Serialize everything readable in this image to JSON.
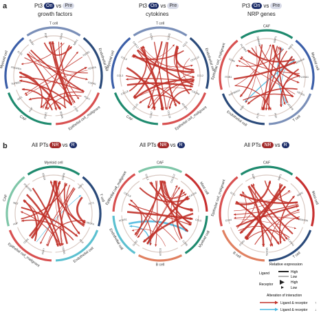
{
  "panels": {
    "a": {
      "letter": "a",
      "items": [
        {
          "title": {
            "prefix": "Pt3",
            "tag_a": "On",
            "vs": "vs",
            "tag_b": "Pre"
          },
          "subtitle": "growth factors",
          "groups": [
            {
              "name": "T cell",
              "color": "#7a8fb8"
            },
            {
              "name": "Endothelial cell",
              "color": "#2a4a7a"
            },
            {
              "name": "Epithelial cell_malignant",
              "color": "#d85050"
            },
            {
              "name": "CAF",
              "color": "#1e8a6e"
            },
            {
              "name": "Myeloid cell",
              "color": "#3b5ea8"
            }
          ],
          "genes": [
            "CD44",
            "NRP1",
            "TGFB1",
            "VEGFA",
            "FGFR1",
            "FGF7",
            "CTGF",
            "EGFR",
            "FGF2",
            "HGF",
            "IGF1",
            "TGFBR2",
            "PDGFRA",
            "FLT1",
            "BDNF",
            "EGF"
          ]
        },
        {
          "title": {
            "prefix": "Pt3",
            "tag_a": "On",
            "vs": "vs",
            "tag_b": "Pre"
          },
          "subtitle": "cytokines",
          "groups": [
            {
              "name": "T cell",
              "color": "#7a8fb8"
            },
            {
              "name": "Endothelial cell",
              "color": "#2a4a7a"
            },
            {
              "name": "Epithelial cell_malignant",
              "color": "#d85050"
            },
            {
              "name": "CAF",
              "color": "#1e8a6e"
            },
            {
              "name": "Myeloid cell",
              "color": "#3b5ea8"
            }
          ],
          "genes": [
            "CCR5",
            "CCL5",
            "CXCL12",
            "CCL2",
            "CXCR4",
            "ACKR1",
            "CCL19",
            "CCR7",
            "CCL21",
            "CXCL8",
            "CCL3",
            "CCL4",
            "CXCL2",
            "CCR1"
          ]
        },
        {
          "title": {
            "prefix": "Pt3",
            "tag_a": "On",
            "vs": "vs",
            "tag_b": "Pre"
          },
          "subtitle": "NRP genes",
          "groups": [
            {
              "name": "CAF",
              "color": "#1e8a6e"
            },
            {
              "name": "Myeloid cell",
              "color": "#3b5ea8"
            },
            {
              "name": "T cell",
              "color": "#7a8fb8"
            },
            {
              "name": "Endothelial cell",
              "color": "#2a4a7a"
            },
            {
              "name": "Epithelial cell_malignant",
              "color": "#d85050"
            }
          ],
          "genes": [
            "NRP1",
            "NRP2",
            "SEMA3A",
            "PLXNA1",
            "VEGFA",
            "VEGFB",
            "PGF",
            "FLT1",
            "KDR",
            "HSP90AA1",
            "ITGB1",
            "CD44",
            "PLXNB2",
            "SEMA4D"
          ]
        }
      ]
    },
    "b": {
      "letter": "b",
      "items": [
        {
          "title": {
            "prefix": "All PTs",
            "tag_a": "NR",
            "vs": "vs",
            "tag_b": "R"
          },
          "groups": [
            {
              "name": "Myeloid cell",
              "color": "#1e8a6e"
            },
            {
              "name": "T cell",
              "color": "#2a4a7a"
            },
            {
              "name": "Endothelial cell",
              "color": "#5bc0d0"
            },
            {
              "name": "Epithelial cell_malignant",
              "color": "#d85050"
            },
            {
              "name": "CAF",
              "color": "#7fc6a8"
            }
          ],
          "genes": [
            "EGFR",
            "NRP1",
            "FLT1",
            "VEGFA",
            "PGF",
            "TGFB1",
            "FGF7",
            "CD44",
            "HGF",
            "MET",
            "PDGFRB",
            "IGF1R"
          ]
        },
        {
          "title": {
            "prefix": "All PTs",
            "tag_a": "NR",
            "vs": "vs",
            "tag_b": "R"
          },
          "groups": [
            {
              "name": "CAF",
              "color": "#7fc6a8"
            },
            {
              "name": "Mast cell",
              "color": "#c83030"
            },
            {
              "name": "Myeloid cell",
              "color": "#1e8a6e"
            },
            {
              "name": "B cell",
              "color": "#e08060"
            },
            {
              "name": "Endothelial cell",
              "color": "#5bc0d0"
            },
            {
              "name": "Epithelial cell_malignant",
              "color": "#d85050"
            }
          ],
          "genes": [
            "CXCL12",
            "CXCR4",
            "CCL5",
            "CCR5",
            "CCL19",
            "CCR7",
            "ACKR1",
            "CXCL8",
            "CCL2"
          ]
        },
        {
          "title": {
            "prefix": "All PTs",
            "tag_a": "NR",
            "vs": "vs",
            "tag_b": "R"
          },
          "groups": [
            {
              "name": "CAF",
              "color": "#1e8a6e"
            },
            {
              "name": "Mast cell",
              "color": "#c83030"
            },
            {
              "name": "T cell",
              "color": "#2a4a7a"
            },
            {
              "name": "B cell",
              "color": "#e08060"
            },
            {
              "name": "Epithelial cell_malignant",
              "color": "#d85050"
            }
          ],
          "genes": [
            "NRP1",
            "NRP2",
            "SEMA3A",
            "PLXNA1",
            "VEGFA",
            "ITGB1",
            "CD44",
            "FLT1",
            "KDR"
          ]
        }
      ]
    }
  },
  "legend": {
    "title": "Relative expression",
    "ligand_label": "Ligand",
    "ligand_high": "High",
    "ligand_low": "Low",
    "receptor_label": "Receptor",
    "receptor_high": "High",
    "receptor_low": "Low",
    "alteration_label": "Alteration of interaction",
    "increase_label": "Ligand & receptor",
    "decrease_label": "Ligand & receptor",
    "increase_color": "#c03028",
    "decrease_color": "#4ab8e0"
  },
  "colors": {
    "chord_main": "#c03028",
    "chord_alt": "#4ab8e0",
    "tag_dark": "#1e2f6a",
    "tag_red": "#a32b2b"
  }
}
